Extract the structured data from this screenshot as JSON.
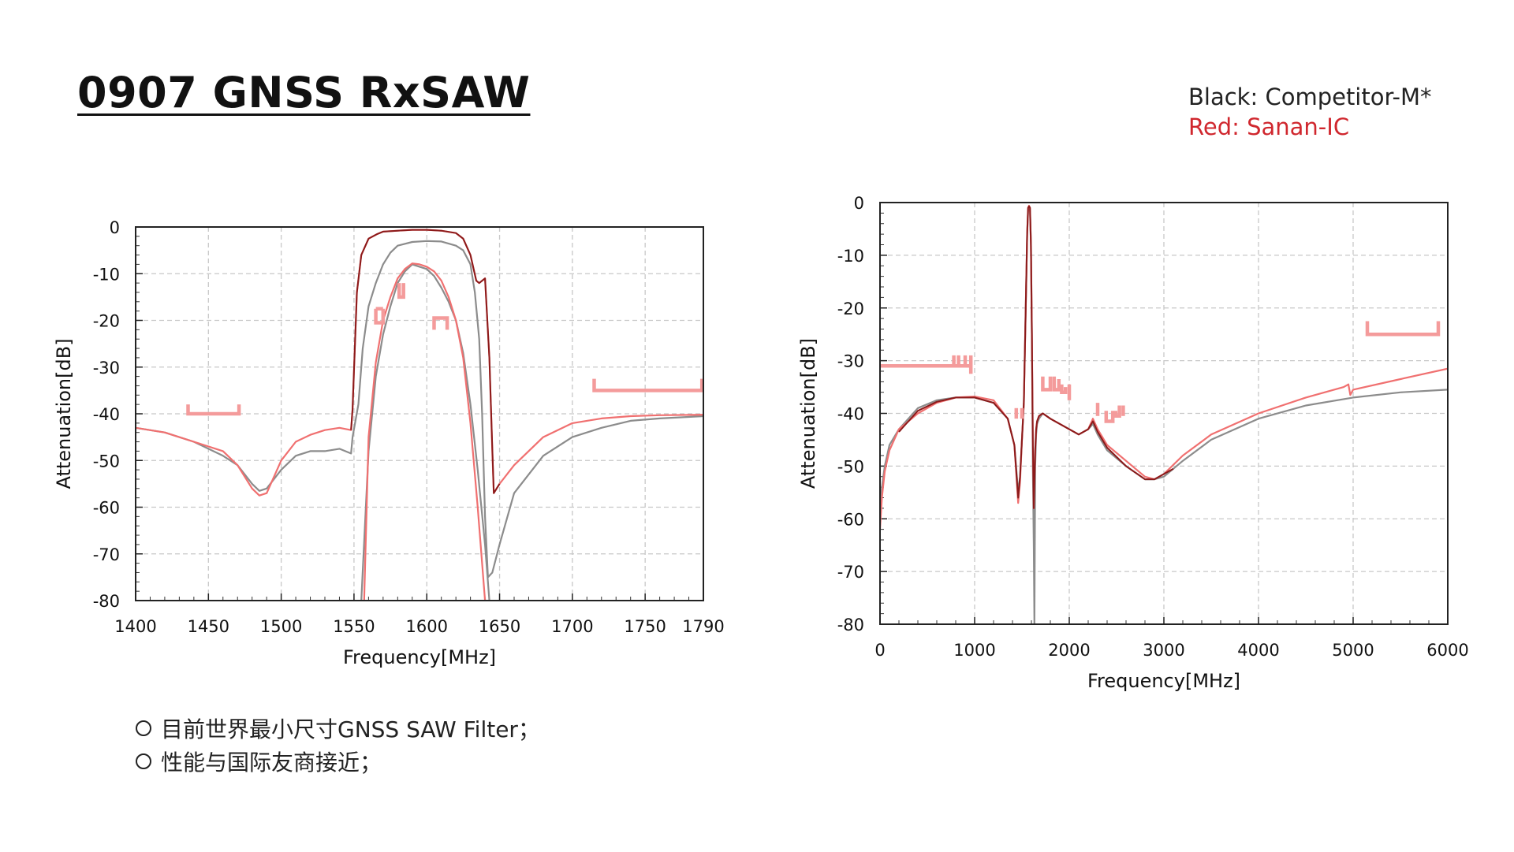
{
  "title": "0907 GNSS RxSAW",
  "legend": {
    "black": "Black: Competitor-M*",
    "red": "Red: Sanan-IC"
  },
  "bullets": [
    "目前世界最小尺寸GNSS SAW Filter；",
    "性能与国际友商接近；"
  ],
  "colors": {
    "competitor": "#8c8c8c",
    "sanan": "#f07070",
    "sanan_dark": "#8b1a1a",
    "mask": "#f49b9b",
    "legend_red": "#d0272e"
  },
  "chart_data": [
    {
      "type": "line",
      "title": "",
      "xlabel": "Frequency[MHz]",
      "ylabel": "Attenuation[dB]",
      "xlim": [
        1400,
        1790
      ],
      "ylim": [
        -80,
        0
      ],
      "xticks": [
        1400,
        1450,
        1500,
        1550,
        1600,
        1650,
        1700,
        1750,
        1790
      ],
      "yticks": [
        0,
        -10,
        -20,
        -30,
        -40,
        -50,
        -60,
        -70,
        -80
      ],
      "grid": true,
      "series": [
        {
          "color_key": "competitor",
          "x": [
            1400,
            1420,
            1440,
            1460,
            1470,
            1480,
            1485,
            1490,
            1500,
            1510,
            1520,
            1530,
            1540,
            1548,
            1549,
            1553,
            1556,
            1560,
            1565,
            1570,
            1575,
            1580,
            1590,
            1600,
            1610,
            1620,
            1625,
            1630,
            1633,
            1636,
            1638,
            1640,
            1642,
            1645,
            1650,
            1660,
            1680,
            1700,
            1720,
            1740,
            1760,
            1790
          ],
          "y": [
            -43,
            -44,
            -46,
            -49,
            -51,
            -55,
            -56.5,
            -56,
            -52,
            -49,
            -48,
            -48,
            -47.5,
            -48.5,
            -45,
            -38,
            -26,
            -17,
            -12,
            -8,
            -5.5,
            -4,
            -3.2,
            -3,
            -3.1,
            -4,
            -5,
            -8,
            -14,
            -24,
            -40,
            -62,
            -75,
            -74,
            -68,
            -57,
            -49,
            -45,
            -43,
            -41.5,
            -41,
            -40.5
          ]
        },
        {
          "color_key": "competitor",
          "x": [
            1555,
            1560,
            1565,
            1570,
            1575,
            1580,
            1585,
            1590,
            1595,
            1600,
            1605,
            1610,
            1615,
            1620,
            1625,
            1630,
            1635,
            1640,
            1643
          ],
          "y": [
            -80,
            -48,
            -32,
            -23,
            -17,
            -12,
            -9.5,
            -8,
            -8.5,
            -9,
            -10.5,
            -13,
            -16,
            -20,
            -27,
            -38,
            -52,
            -68,
            -80
          ]
        },
        {
          "color_key": "sanan",
          "x": [
            1400,
            1420,
            1440,
            1460,
            1470,
            1480,
            1485,
            1490,
            1500,
            1510,
            1520,
            1530,
            1540,
            1548,
            1549,
            1552,
            1555,
            1560,
            1566,
            1570,
            1580,
            1590,
            1600,
            1610,
            1620,
            1625,
            1630,
            1634,
            1636,
            1640,
            1643,
            1645,
            1646,
            1648,
            1650,
            1660,
            1680,
            1700,
            1720,
            1740,
            1760,
            1790
          ],
          "y": [
            -43,
            -44,
            -46,
            -48,
            -51,
            -56,
            -57.5,
            -57,
            -50,
            -46,
            -44.5,
            -43.5,
            -43,
            -43.5,
            -39,
            -14,
            -6,
            -2.5,
            -1.5,
            -1,
            -0.8,
            -0.6,
            -0.6,
            -0.8,
            -1.3,
            -2.5,
            -6,
            -11.5,
            -12,
            -11,
            -28,
            -48,
            -57,
            -56,
            -55,
            -51,
            -45,
            -42,
            -41,
            -40.5,
            -40.3,
            -40.2
          ]
        },
        {
          "color_key": "sanan_dark",
          "x": [
            1548,
            1549,
            1552,
            1555,
            1560,
            1566,
            1570,
            1580,
            1590,
            1600,
            1610,
            1620,
            1625,
            1630,
            1634,
            1636,
            1640,
            1643,
            1646,
            1650
          ],
          "y": [
            -43.5,
            -39,
            -14,
            -6,
            -2.5,
            -1.5,
            -1,
            -0.8,
            -0.6,
            -0.6,
            -0.8,
            -1.3,
            -2.5,
            -6,
            -11.5,
            -12,
            -11,
            -28,
            -57,
            -55
          ]
        },
        {
          "color_key": "sanan",
          "x": [
            1557,
            1560,
            1565,
            1570,
            1575,
            1580,
            1585,
            1590,
            1595,
            1600,
            1605,
            1610,
            1615,
            1620,
            1625,
            1630,
            1635,
            1640
          ],
          "y": [
            -80,
            -45,
            -29,
            -20,
            -15,
            -11,
            -9,
            -7.8,
            -8,
            -8.5,
            -9.5,
            -11.5,
            -15,
            -20,
            -28,
            -42,
            -60,
            -80
          ]
        }
      ],
      "mask_segments": [
        [
          [
            1436,
            -38
          ],
          [
            1436,
            -40
          ],
          [
            1471,
            -40
          ],
          [
            1471,
            -38
          ]
        ],
        [
          [
            1565,
            -17.5
          ],
          [
            1565,
            -20.5
          ],
          [
            1570,
            -20.5
          ],
          [
            1570,
            -17.5
          ]
        ],
        [
          [
            1565,
            -17.5
          ],
          [
            1570,
            -17.5
          ]
        ],
        [
          [
            1581,
            -12
          ],
          [
            1581,
            -15
          ],
          [
            1584,
            -15
          ],
          [
            1584,
            -12
          ]
        ],
        [
          [
            1605,
            -22
          ],
          [
            1605,
            -19.5
          ],
          [
            1614,
            -19.5
          ],
          [
            1614,
            -22
          ]
        ],
        [
          [
            1715,
            -32.5
          ],
          [
            1715,
            -35
          ],
          [
            1790,
            -35
          ]
        ],
        [
          [
            1789,
            -32.5
          ],
          [
            1789,
            -35
          ]
        ]
      ]
    },
    {
      "type": "line",
      "title": "",
      "xlabel": "Frequency[MHz]",
      "ylabel": "Attenuation[dB]",
      "xlim": [
        0,
        6000
      ],
      "ylim": [
        -80,
        0
      ],
      "xticks": [
        0,
        1000,
        2000,
        3000,
        4000,
        5000,
        6000
      ],
      "yticks": [
        0,
        -10,
        -20,
        -30,
        -40,
        -50,
        -60,
        -70,
        -80
      ],
      "grid": true,
      "series": [
        {
          "color_key": "competitor",
          "x": [
            0,
            20,
            50,
            100,
            200,
            400,
            600,
            800,
            1000,
            1200,
            1350,
            1420,
            1460,
            1480,
            1500,
            1520,
            1540,
            1555,
            1565,
            1575,
            1585,
            1595,
            1605,
            1615,
            1625,
            1632,
            1640,
            1650,
            1660,
            1680,
            1720,
            1800,
            1900,
            2000,
            2100,
            2200,
            2250,
            2300,
            2400,
            2600,
            2800,
            2900,
            3000,
            3200,
            3500,
            4000,
            4500,
            5000,
            5500,
            6000
          ],
          "y": [
            -60,
            -54,
            -50,
            -46,
            -43,
            -39,
            -37.5,
            -37,
            -37,
            -38,
            -41,
            -46,
            -55,
            -52,
            -45,
            -38,
            -20,
            -6,
            -1.5,
            -1,
            -1.5,
            -8,
            -25,
            -50,
            -65,
            -80,
            -50,
            -44,
            -42,
            -41,
            -40,
            -41,
            -42,
            -43,
            -44,
            -43,
            -42,
            -44,
            -47,
            -50,
            -52.5,
            -52.5,
            -52,
            -49,
            -45,
            -41,
            -38.5,
            -37,
            -36,
            -35.5
          ]
        },
        {
          "color_key": "sanan",
          "x": [
            0,
            20,
            50,
            100,
            200,
            400,
            600,
            800,
            1000,
            1200,
            1350,
            1420,
            1460,
            1480,
            1500,
            1520,
            1540,
            1555,
            1565,
            1575,
            1585,
            1595,
            1605,
            1615,
            1625,
            1640,
            1650,
            1660,
            1680,
            1720,
            1800,
            1900,
            2000,
            2100,
            2200,
            2250,
            2300,
            2400,
            2600,
            2800,
            2900,
            3000,
            3200,
            3500,
            4000,
            4500,
            4900,
            4950,
            4970,
            5000,
            5500,
            6000
          ],
          "y": [
            -62,
            -56,
            -51,
            -47,
            -43,
            -40,
            -38,
            -37,
            -36.8,
            -37.5,
            -41,
            -46,
            -57,
            -53,
            -45,
            -38,
            -20,
            -6,
            -1,
            -0.6,
            -1,
            -8,
            -25,
            -45,
            -58,
            -47,
            -43,
            -41.5,
            -40.5,
            -40,
            -41,
            -42,
            -43,
            -44,
            -43,
            -41,
            -43,
            -46,
            -49,
            -52,
            -52.5,
            -51.5,
            -48,
            -44,
            -40,
            -37,
            -35,
            -34.5,
            -36.5,
            -35.5,
            -33.5,
            -31.5
          ]
        },
        {
          "color_key": "sanan_dark",
          "x": [
            200,
            400,
            600,
            800,
            1000,
            1200,
            1350,
            1420,
            1460,
            1480,
            1500,
            1520,
            1540,
            1555,
            1565,
            1575,
            1585,
            1595,
            1605,
            1615,
            1625,
            1640,
            1650,
            1660,
            1680,
            1720,
            1800,
            1900,
            2000,
            2100,
            2200,
            2250,
            2300,
            2400,
            2600,
            2800,
            2900,
            3000,
            3100
          ],
          "y": [
            -43.5,
            -39.5,
            -37.8,
            -37,
            -37,
            -38,
            -41,
            -46,
            -56,
            -52,
            -45,
            -38,
            -20,
            -6,
            -1,
            -0.7,
            -1,
            -8,
            -25,
            -45,
            -58,
            -47,
            -43,
            -41.5,
            -40.5,
            -40,
            -41,
            -42,
            -43,
            -44,
            -43,
            -41.5,
            -43.5,
            -46.5,
            -50,
            -52.5,
            -52.5,
            -51.5,
            -50.5
          ]
        }
      ],
      "mask_segments": [
        [
          [
            0,
            -31
          ],
          [
            960,
            -31
          ]
        ],
        [
          [
            780,
            -29
          ],
          [
            780,
            -31
          ],
          [
            830,
            -31
          ],
          [
            830,
            -29
          ]
        ],
        [
          [
            900,
            -29
          ],
          [
            900,
            -31
          ]
        ],
        [
          [
            960,
            -29
          ],
          [
            960,
            -32.5
          ]
        ],
        [
          [
            1440,
            -39
          ],
          [
            1440,
            -41
          ]
        ],
        [
          [
            1500,
            -39
          ],
          [
            1500,
            -41
          ]
        ],
        [
          [
            1720,
            -33
          ],
          [
            1720,
            -35.5
          ],
          [
            1800,
            -35.5
          ],
          [
            1800,
            -33
          ]
        ],
        [
          [
            1840,
            -33
          ],
          [
            1840,
            -35.5
          ],
          [
            1890,
            -35.5
          ],
          [
            1890,
            -33.5
          ]
        ],
        [
          [
            1920,
            -34.5
          ],
          [
            1920,
            -36
          ],
          [
            1960,
            -36
          ],
          [
            1960,
            -35
          ]
        ],
        [
          [
            2000,
            -34.5
          ],
          [
            2000,
            -37.5
          ]
        ],
        [
          [
            2300,
            -38
          ],
          [
            2300,
            -40.5
          ]
        ],
        [
          [
            2390,
            -39.5
          ],
          [
            2390,
            -41.5
          ],
          [
            2460,
            -41.5
          ],
          [
            2460,
            -39.5
          ]
        ],
        [
          [
            2490,
            -39.5
          ],
          [
            2490,
            -40.5
          ],
          [
            2530,
            -40.5
          ],
          [
            2530,
            -38.5
          ]
        ],
        [
          [
            2570,
            -38.5
          ],
          [
            2570,
            -40.5
          ]
        ],
        [
          [
            5150,
            -22.5
          ],
          [
            5150,
            -25
          ],
          [
            5900,
            -25
          ],
          [
            5900,
            -22.5
          ]
        ]
      ]
    }
  ]
}
